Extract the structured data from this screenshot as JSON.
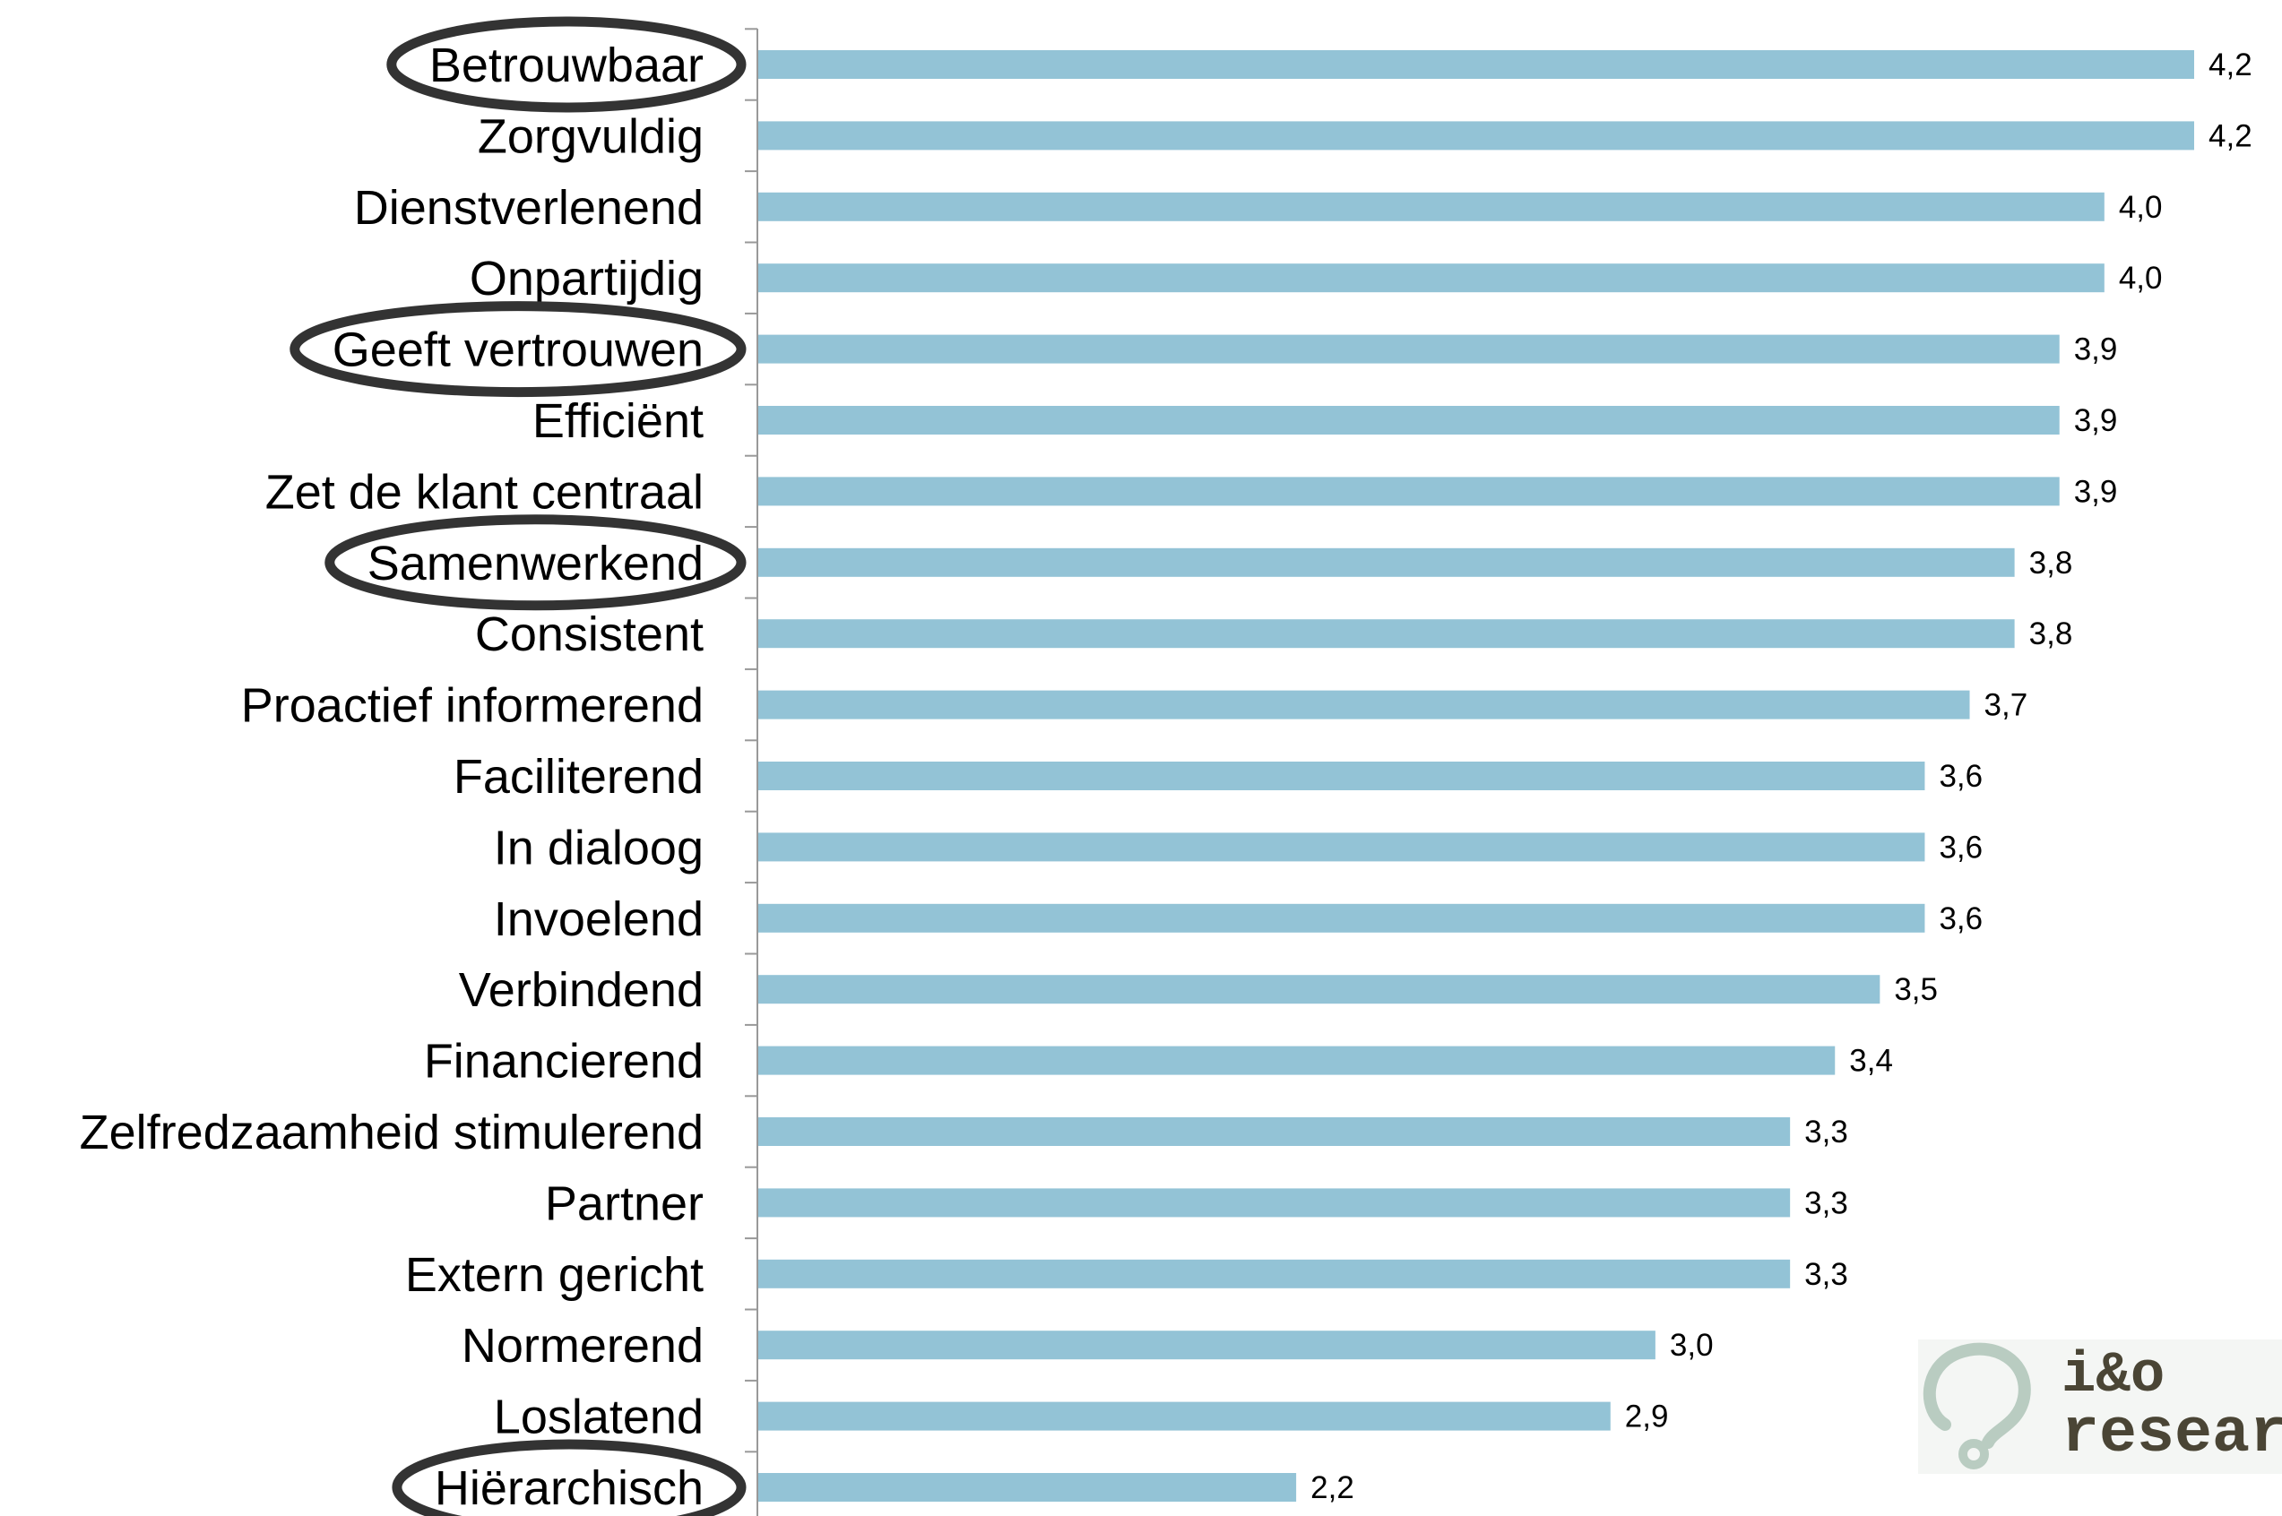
{
  "chart_data": {
    "type": "bar",
    "orientation": "horizontal",
    "categories": [
      "Betrouwbaar",
      "Zorgvuldig",
      "Dienstverlenend",
      "Onpartijdig",
      "Geeft vertrouwen",
      "Efficiënt",
      "Zet de klant centraal",
      "Samenwerkend",
      "Consistent",
      "Proactief informerend",
      "Faciliterend",
      "In dialoog",
      "Invoelend",
      "Verbindend",
      "Financierend",
      "Zelfredzaamheid stimulerend",
      "Partner",
      "Extern gericht",
      "Normerend",
      "Loslatend",
      "Hiërarchisch"
    ],
    "values": [
      4.2,
      4.2,
      4.0,
      4.0,
      3.9,
      3.9,
      3.9,
      3.8,
      3.8,
      3.7,
      3.6,
      3.6,
      3.6,
      3.5,
      3.4,
      3.3,
      3.3,
      3.3,
      3.0,
      2.9,
      2.2
    ],
    "value_labels": [
      "4,2",
      "4,2",
      "4,0",
      "4,0",
      "3,9",
      "3,9",
      "3,9",
      "3,8",
      "3,8",
      "3,7",
      "3,6",
      "3,6",
      "3,6",
      "3,5",
      "3,4",
      "3,3",
      "3,3",
      "3,3",
      "3,0",
      "2,9",
      "2,2"
    ],
    "circled": [
      "Betrouwbaar",
      "Geeft vertrouwen",
      "Samenwerkend",
      "Hiërarchisch"
    ],
    "xlim": [
      1,
      4.2
    ],
    "bar_color": "#93c3d6",
    "circle_color": "#333333",
    "axis_color": "#999999",
    "grid": false,
    "legend": "none"
  },
  "logo": {
    "line1": "i&o",
    "line2": "researc",
    "icon": "question-mark-logo-icon",
    "color": "#4a4535",
    "icon_color": "#b9ccc1"
  }
}
